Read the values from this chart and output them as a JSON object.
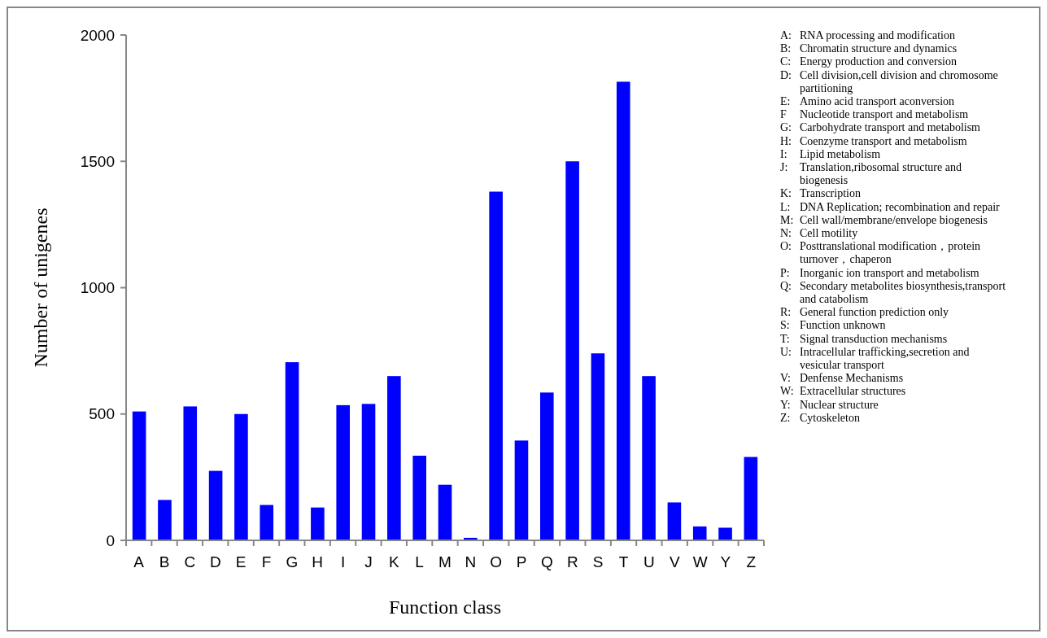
{
  "chart_data": {
    "type": "bar",
    "xlabel": "Function class",
    "ylabel": "Number of unigenes",
    "categories": [
      "A",
      "B",
      "C",
      "D",
      "E",
      "F",
      "G",
      "H",
      "I",
      "J",
      "K",
      "L",
      "M",
      "N",
      "O",
      "P",
      "Q",
      "R",
      "S",
      "T",
      "U",
      "V",
      "W",
      "Y",
      "Z"
    ],
    "values": [
      510,
      160,
      530,
      275,
      500,
      140,
      705,
      130,
      535,
      540,
      650,
      335,
      220,
      10,
      1380,
      395,
      585,
      1500,
      740,
      1815,
      650,
      150,
      55,
      50,
      330
    ],
    "color": "#0000ff",
    "ylim": [
      0,
      2000
    ],
    "yticks": [
      0,
      500,
      1000,
      1500,
      2000
    ],
    "grid": false,
    "annotations": [
      "A: RNA processing and modification",
      "B: Chromatin structure and dynamics",
      "C: Energy production and conversion",
      "D: Cell division,cell division and chromosome partitioning",
      "E: Amino acid transport aconversion",
      "F Nucleotide transport and metabolism",
      "G: Carbohydrate transport and metabolism",
      "H: Coenzyme transport and metabolism",
      "I: Lipid metabolism",
      "J: Translation,ribosomal structure and biogenesis",
      "K: Transcription",
      "L: DNA Replication; recombination and repair",
      "M: Cell wall/membrane/envelope biogenesis",
      "N: Cell motility",
      "O: Posttranslational modification，protein turnover，chaperon",
      "P: Inorganic ion transport and metabolism",
      "Q: Secondary metabolites biosynthesis,transport and catabolism",
      "R: General function prediction only",
      "S: Function unknown",
      "T: Signal transduction mechanisms",
      "U: Intracellular trafficking,secretion and vesicular transport",
      "V: Denfense Mechanisms",
      "W: Extracellular structures",
      "Y: Nuclear structure",
      "Z: Cytoskeleton"
    ]
  }
}
